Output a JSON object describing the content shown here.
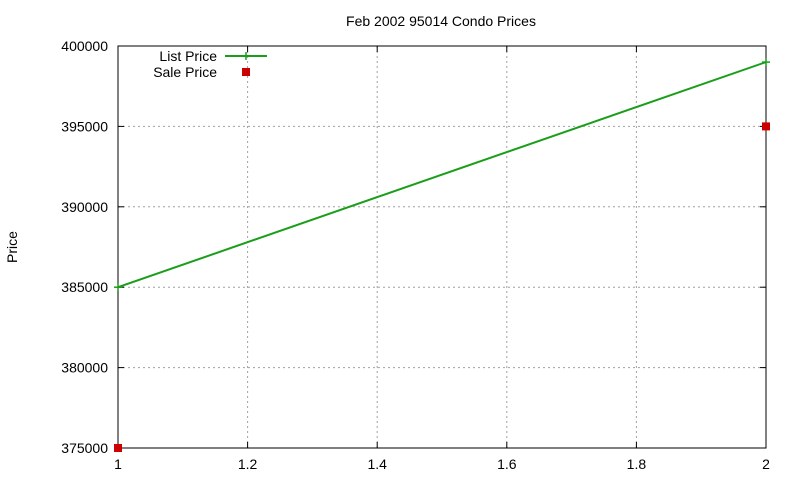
{
  "chart_data": {
    "type": "line",
    "title": "Feb 2002 95014 Condo Prices",
    "xlabel": "",
    "ylabel": "Price",
    "xlim": [
      1,
      2
    ],
    "ylim": [
      375000,
      400000
    ],
    "x_ticks": [
      "1",
      "1.2",
      "1.4",
      "1.6",
      "1.8",
      "2"
    ],
    "y_ticks": [
      "375000",
      "380000",
      "385000",
      "390000",
      "395000",
      "400000"
    ],
    "grid": true,
    "legend_position": "top-left",
    "series": [
      {
        "name": "List Price",
        "style": "linespoints",
        "marker": "plus",
        "color": "#1a9e1a",
        "x": [
          1,
          2
        ],
        "y": [
          385000,
          399000
        ]
      },
      {
        "name": "Sale Price",
        "style": "points",
        "marker": "square",
        "color": "#cc0000",
        "x": [
          1,
          2
        ],
        "y": [
          375000,
          395000
        ]
      }
    ]
  }
}
